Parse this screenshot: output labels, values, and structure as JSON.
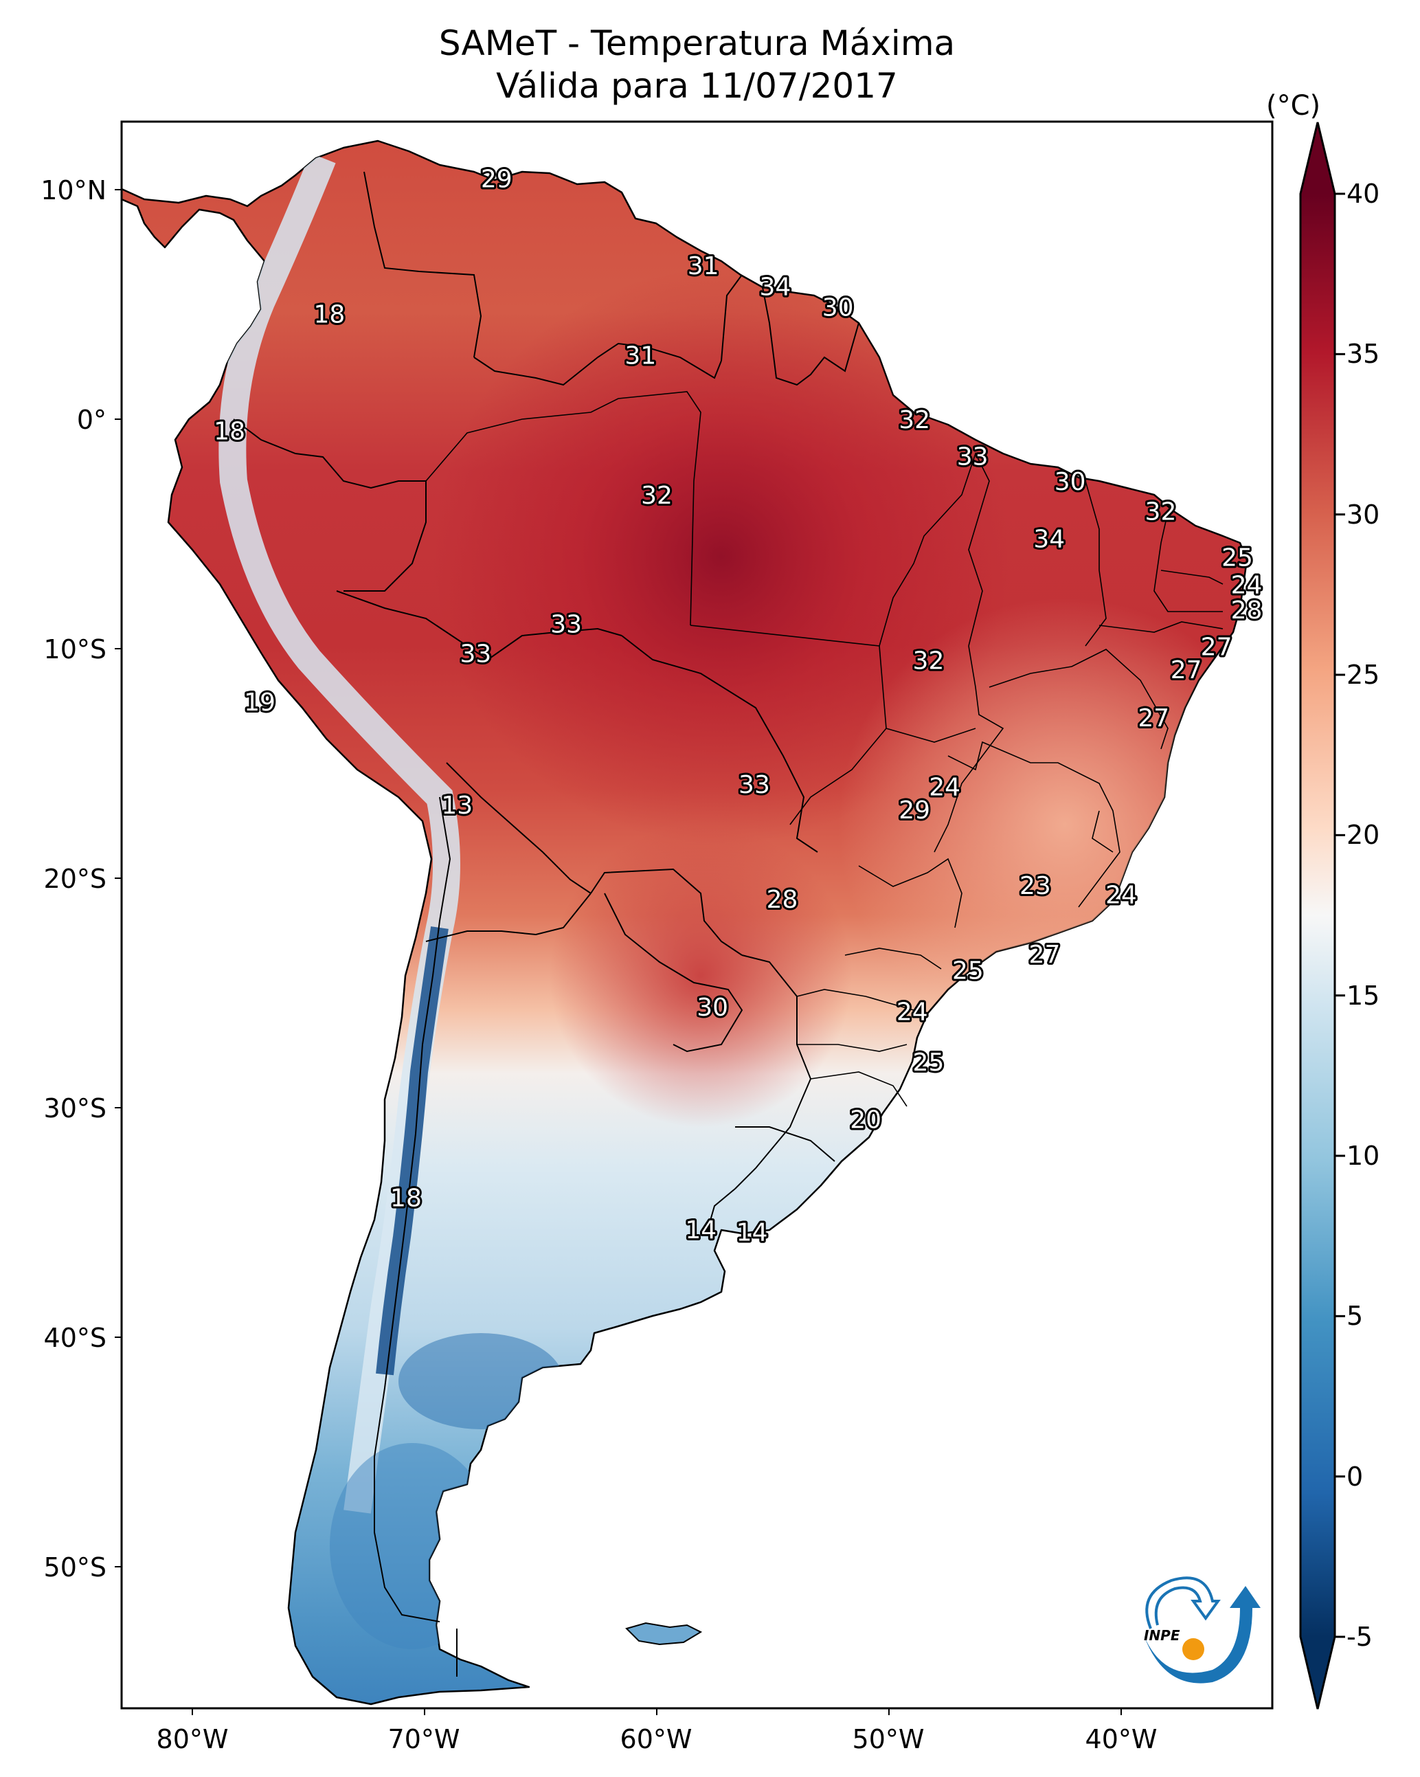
{
  "title": {
    "line1": "SAMeT - Temperatura Máxima",
    "line2": "Válida para 11/07/2017"
  },
  "colorbar": {
    "unit": "(°C)",
    "colormap": "RdBu_r",
    "min": -5,
    "max": 40,
    "extend": "both",
    "ticks": [
      "40",
      "35",
      "30",
      "25",
      "20",
      "15",
      "10",
      "5",
      "0",
      "-5"
    ]
  },
  "axes": {
    "lat_labels": [
      "10°N",
      "0°",
      "10°S",
      "20°S",
      "30°S",
      "40°S",
      "50°S"
    ],
    "lon_labels": [
      "80°W",
      "70°W",
      "60°W",
      "50°W",
      "40°W"
    ]
  },
  "logo": {
    "text": "INPE"
  },
  "chart_data": {
    "type": "heatmap",
    "title": "SAMeT - Temperatura Máxima — Válida para 11/07/2017",
    "variable": "Maximum temperature",
    "units": "°C",
    "color_range": [
      -5,
      40
    ],
    "extent": {
      "lon": [
        -83,
        -33.5
      ],
      "lat": [
        -56,
        13
      ]
    },
    "xticks": [
      -80,
      -70,
      -60,
      -50,
      -40
    ],
    "yticks": [
      10,
      0,
      -10,
      -20,
      -30,
      -40,
      -50
    ],
    "station_labels": [
      {
        "lon": -66.9,
        "lat": 10.5,
        "value": 29
      },
      {
        "lon": -58.0,
        "lat": 6.7,
        "value": 31
      },
      {
        "lon": -54.9,
        "lat": 5.8,
        "value": 34
      },
      {
        "lon": -52.2,
        "lat": 4.9,
        "value": 30
      },
      {
        "lon": -74.1,
        "lat": 4.6,
        "value": 18
      },
      {
        "lon": -60.7,
        "lat": 2.8,
        "value": 31
      },
      {
        "lon": -48.9,
        "lat": 0.0,
        "value": 32
      },
      {
        "lon": -78.4,
        "lat": -0.5,
        "value": 18
      },
      {
        "lon": -46.4,
        "lat": -1.6,
        "value": 33
      },
      {
        "lon": -42.2,
        "lat": -2.7,
        "value": 30
      },
      {
        "lon": -60.0,
        "lat": -3.3,
        "value": 32
      },
      {
        "lon": -38.3,
        "lat": -4.0,
        "value": 32
      },
      {
        "lon": -43.1,
        "lat": -5.2,
        "value": 34
      },
      {
        "lon": -35.0,
        "lat": -6.0,
        "value": 25
      },
      {
        "lon": -34.6,
        "lat": -7.2,
        "value": 24
      },
      {
        "lon": -34.6,
        "lat": -8.3,
        "value": 28
      },
      {
        "lon": -63.9,
        "lat": -8.9,
        "value": 33
      },
      {
        "lon": -35.9,
        "lat": -9.9,
        "value": 27
      },
      {
        "lon": -67.8,
        "lat": -10.2,
        "value": 33
      },
      {
        "lon": -48.3,
        "lat": -10.5,
        "value": 32
      },
      {
        "lon": -37.2,
        "lat": -10.9,
        "value": 27
      },
      {
        "lon": -77.1,
        "lat": -12.3,
        "value": 19
      },
      {
        "lon": -38.6,
        "lat": -13.0,
        "value": 27
      },
      {
        "lon": -55.8,
        "lat": -15.9,
        "value": 33
      },
      {
        "lon": -47.6,
        "lat": -16.0,
        "value": 24
      },
      {
        "lon": -68.6,
        "lat": -16.8,
        "value": 13
      },
      {
        "lon": -48.9,
        "lat": -17.0,
        "value": 29
      },
      {
        "lon": -43.7,
        "lat": -20.3,
        "value": 23
      },
      {
        "lon": -54.6,
        "lat": -20.9,
        "value": 28
      },
      {
        "lon": -40.0,
        "lat": -20.7,
        "value": 24
      },
      {
        "lon": -43.3,
        "lat": -23.3,
        "value": 27
      },
      {
        "lon": -46.6,
        "lat": -24.0,
        "value": 25
      },
      {
        "lon": -57.6,
        "lat": -25.6,
        "value": 30
      },
      {
        "lon": -49.0,
        "lat": -25.8,
        "value": 24
      },
      {
        "lon": -48.3,
        "lat": -28.0,
        "value": 25
      },
      {
        "lon": -51.0,
        "lat": -30.5,
        "value": 20
      },
      {
        "lon": -70.8,
        "lat": -33.9,
        "value": 18
      },
      {
        "lon": -58.1,
        "lat": -35.3,
        "value": 14
      },
      {
        "lon": -55.9,
        "lat": -35.4,
        "value": 14
      }
    ]
  }
}
